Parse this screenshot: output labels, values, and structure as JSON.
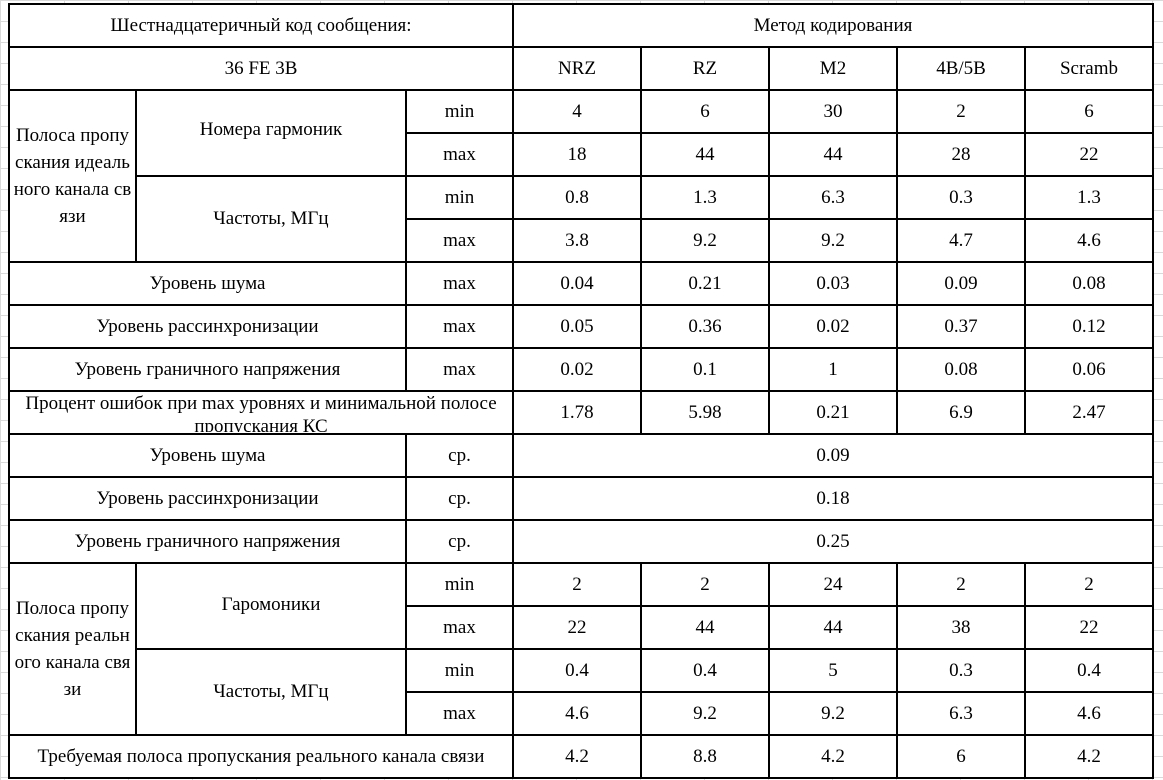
{
  "header": {
    "hex_label": "Шестнадцатеричный код сообщения:",
    "hex_value": "36 FE 3B",
    "method_label": "Метод кодирования",
    "methods": [
      "NRZ",
      "RZ",
      "M2",
      "4B/5B",
      "Scramb"
    ]
  },
  "ideal_band": {
    "label": "Полоса пропускания идеального канала связи",
    "harmonics_label": "Номера гармоник",
    "freq_label": "Частоты, МГц",
    "min_label": "min",
    "max_label": "max",
    "harmonics_min": [
      "4",
      "6",
      "30",
      "2",
      "6"
    ],
    "harmonics_max": [
      "18",
      "44",
      "44",
      "28",
      "22"
    ],
    "freq_min": [
      "0.8",
      "1.3",
      "6.3",
      "0.3",
      "1.3"
    ],
    "freq_max": [
      "3.8",
      "9.2",
      "9.2",
      "4.7",
      "4.6"
    ]
  },
  "levels_max": [
    {
      "label": "Уровень шума",
      "stat": "max",
      "values": [
        "0.04",
        "0.21",
        "0.03",
        "0.09",
        "0.08"
      ]
    },
    {
      "label": "Уровень рассинхронизации",
      "stat": "max",
      "values": [
        "0.05",
        "0.36",
        "0.02",
        "0.37",
        "0.12"
      ]
    },
    {
      "label": "Уровень граничного напряжения",
      "stat": "max",
      "values": [
        "0.02",
        "0.1",
        "1",
        "0.08",
        "0.06"
      ]
    }
  ],
  "error_percent": {
    "label": "Процент ошибок при max уровнях и минимальной полосе пропускания КС",
    "values": [
      "1.78",
      "5.98",
      "0.21",
      "6.9",
      "2.47"
    ]
  },
  "levels_avg": [
    {
      "label": "Уровень шума",
      "stat": "ср.",
      "value": "0.09"
    },
    {
      "label": "Уровень рассинхронизации",
      "stat": "ср.",
      "value": "0.18"
    },
    {
      "label": "Уровень граничного напряжения",
      "stat": "ср.",
      "value": "0.25"
    }
  ],
  "real_band": {
    "label": "Полоса пропускания реального канала связи",
    "harmonics_label": "Гаромоники",
    "freq_label": "Частоты, МГц",
    "min_label": "min",
    "max_label": "max",
    "harmonics_min": [
      "2",
      "2",
      "24",
      "2",
      "2"
    ],
    "harmonics_max": [
      "22",
      "44",
      "44",
      "38",
      "22"
    ],
    "freq_min": [
      "0.4",
      "0.4",
      "5",
      "0.3",
      "0.4"
    ],
    "freq_max": [
      "4.6",
      "9.2",
      "9.2",
      "6.3",
      "4.6"
    ]
  },
  "required_band": {
    "label": "Требуемая полоса пропускания реального канала связи",
    "values": [
      "4.2",
      "8.8",
      "4.2",
      "6",
      "4.2"
    ]
  }
}
